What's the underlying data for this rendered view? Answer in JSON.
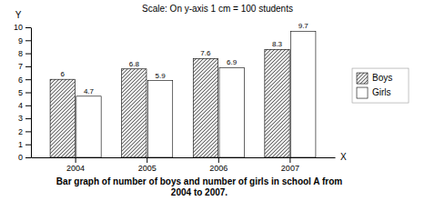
{
  "chart_data": {
    "type": "bar",
    "title": [
      "Bar graph of number of boys and number of girls in school A from",
      "2004 to 2007."
    ],
    "subtitle": "Scale: On y-axis 1 cm = 100 students",
    "x_label": "X",
    "y_label": "Y",
    "categories": [
      "2004",
      "2005",
      "2006",
      "2007"
    ],
    "series": [
      {
        "name": "Boys",
        "color": "#e8e8e8",
        "values": [
          6.0,
          6.8,
          7.6,
          8.3
        ]
      },
      {
        "name": "Girls",
        "color": "#ffffff",
        "values": [
          4.7,
          5.9,
          6.9,
          9.7
        ]
      }
    ],
    "ylim": [
      0,
      10
    ],
    "yticks": [
      0,
      1,
      2,
      3,
      4,
      5,
      6,
      7,
      8,
      9,
      10
    ],
    "grid": false,
    "legend": "right",
    "data_labels": true
  }
}
